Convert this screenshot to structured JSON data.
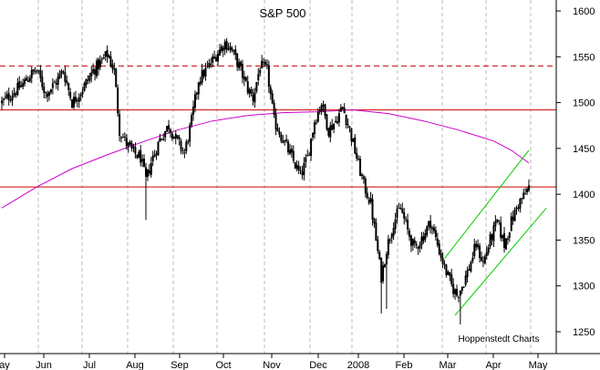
{
  "chart_data": {
    "type": "candlestick-bar",
    "title": "S&P 500",
    "credit": "Hoppenstedt Charts",
    "xlabel": "",
    "ylabel": "",
    "ylim": [
      1240,
      1610
    ],
    "y_ticks": [
      1250,
      1300,
      1350,
      1400,
      1450,
      1500,
      1550,
      1600
    ],
    "x_ticks": [
      "ay",
      "Jun",
      "Jul",
      "Aug",
      "Sep",
      "Oct",
      "Nov",
      "Dec",
      "2008",
      "Feb",
      "Mar",
      "Apr",
      "May"
    ],
    "grid": "vertical dashed at month boundaries",
    "colors": {
      "price": "#000000",
      "moving_average": "#cc00cc",
      "support_resistance": "#cc0000",
      "channel": "#00cc00",
      "grid": "#bbbbbb"
    },
    "horizontal_levels": [
      {
        "value": 1540,
        "style": "dashed"
      },
      {
        "value": 1492,
        "style": "solid"
      },
      {
        "value": 1408,
        "style": "solid"
      }
    ],
    "moving_average": [
      {
        "i": 0,
        "v": 1385
      },
      {
        "i": 20,
        "v": 1408
      },
      {
        "i": 40,
        "v": 1428
      },
      {
        "i": 60,
        "v": 1443
      },
      {
        "i": 80,
        "v": 1457
      },
      {
        "i": 100,
        "v": 1470
      },
      {
        "i": 120,
        "v": 1480
      },
      {
        "i": 140,
        "v": 1486
      },
      {
        "i": 160,
        "v": 1489
      },
      {
        "i": 180,
        "v": 1490
      },
      {
        "i": 200,
        "v": 1492
      },
      {
        "i": 220,
        "v": 1488
      },
      {
        "i": 240,
        "v": 1480
      },
      {
        "i": 260,
        "v": 1470
      },
      {
        "i": 280,
        "v": 1458
      },
      {
        "i": 290,
        "v": 1448
      },
      {
        "i": 300,
        "v": 1434
      }
    ],
    "channel": [
      {
        "i1": 252,
        "v1": 1330,
        "i2": 300,
        "v2": 1448
      },
      {
        "i1": 258,
        "v1": 1268,
        "i2": 310,
        "v2": 1385
      }
    ],
    "price_anchors": [
      {
        "i": 0,
        "v": 1500
      },
      {
        "i": 6,
        "v": 1510
      },
      {
        "i": 12,
        "v": 1520
      },
      {
        "i": 16,
        "v": 1530
      },
      {
        "i": 20,
        "v": 1535
      },
      {
        "i": 25,
        "v": 1510
      },
      {
        "i": 30,
        "v": 1520
      },
      {
        "i": 35,
        "v": 1535
      },
      {
        "i": 40,
        "v": 1500
      },
      {
        "i": 46,
        "v": 1515
      },
      {
        "i": 52,
        "v": 1535
      },
      {
        "i": 57,
        "v": 1545
      },
      {
        "i": 60,
        "v": 1553
      },
      {
        "i": 64,
        "v": 1535
      },
      {
        "i": 67,
        "v": 1470
      },
      {
        "i": 71,
        "v": 1455
      },
      {
        "i": 75,
        "v": 1445
      },
      {
        "i": 79,
        "v": 1440
      },
      {
        "i": 82,
        "v": 1415
      },
      {
        "i": 85,
        "v": 1435
      },
      {
        "i": 90,
        "v": 1460
      },
      {
        "i": 95,
        "v": 1475
      },
      {
        "i": 99,
        "v": 1460
      },
      {
        "i": 104,
        "v": 1445
      },
      {
        "i": 108,
        "v": 1480
      },
      {
        "i": 112,
        "v": 1525
      },
      {
        "i": 118,
        "v": 1540
      },
      {
        "i": 123,
        "v": 1555
      },
      {
        "i": 127,
        "v": 1565
      },
      {
        "i": 130,
        "v": 1560
      },
      {
        "i": 135,
        "v": 1540
      },
      {
        "i": 140,
        "v": 1515
      },
      {
        "i": 143,
        "v": 1505
      },
      {
        "i": 147,
        "v": 1540
      },
      {
        "i": 151,
        "v": 1535
      },
      {
        "i": 155,
        "v": 1480
      },
      {
        "i": 160,
        "v": 1460
      },
      {
        "i": 165,
        "v": 1440
      },
      {
        "i": 170,
        "v": 1420
      },
      {
        "i": 174,
        "v": 1440
      },
      {
        "i": 178,
        "v": 1480
      },
      {
        "i": 182,
        "v": 1500
      },
      {
        "i": 186,
        "v": 1470
      },
      {
        "i": 190,
        "v": 1480
      },
      {
        "i": 194,
        "v": 1495
      },
      {
        "i": 198,
        "v": 1470
      },
      {
        "i": 202,
        "v": 1440
      },
      {
        "i": 206,
        "v": 1410
      },
      {
        "i": 210,
        "v": 1390
      },
      {
        "i": 213,
        "v": 1350
      },
      {
        "i": 216,
        "v": 1310
      },
      {
        "i": 219,
        "v": 1340
      },
      {
        "i": 223,
        "v": 1370
      },
      {
        "i": 227,
        "v": 1385
      },
      {
        "i": 231,
        "v": 1360
      },
      {
        "i": 235,
        "v": 1340
      },
      {
        "i": 240,
        "v": 1355
      },
      {
        "i": 244,
        "v": 1370
      },
      {
        "i": 248,
        "v": 1345
      },
      {
        "i": 252,
        "v": 1320
      },
      {
        "i": 256,
        "v": 1300
      },
      {
        "i": 259,
        "v": 1290
      },
      {
        "i": 262,
        "v": 1300
      },
      {
        "i": 266,
        "v": 1320
      },
      {
        "i": 270,
        "v": 1345
      },
      {
        "i": 274,
        "v": 1325
      },
      {
        "i": 278,
        "v": 1350
      },
      {
        "i": 282,
        "v": 1370
      },
      {
        "i": 286,
        "v": 1345
      },
      {
        "i": 290,
        "v": 1370
      },
      {
        "i": 294,
        "v": 1390
      },
      {
        "i": 298,
        "v": 1400
      },
      {
        "i": 300,
        "v": 1408
      }
    ],
    "spikes": [
      {
        "i": 82,
        "low": 1372
      },
      {
        "i": 216,
        "low": 1270
      },
      {
        "i": 219,
        "low": 1275
      },
      {
        "i": 261,
        "low": 1258
      }
    ]
  }
}
